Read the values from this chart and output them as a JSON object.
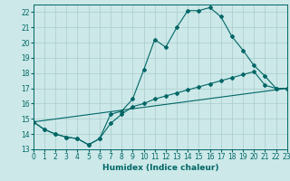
{
  "background_color": "#cce8e8",
  "grid_color": "#aacccc",
  "line_color": "#006666",
  "xlabel": "Humidex (Indice chaleur)",
  "xlim": [
    0,
    23
  ],
  "ylim": [
    13,
    22.5
  ],
  "yticks": [
    13,
    14,
    15,
    16,
    17,
    18,
    19,
    20,
    21,
    22
  ],
  "xticks": [
    0,
    1,
    2,
    3,
    4,
    5,
    6,
    7,
    8,
    9,
    10,
    11,
    12,
    13,
    14,
    15,
    16,
    17,
    18,
    19,
    20,
    21,
    22,
    23
  ],
  "series1_x": [
    0,
    1,
    2,
    3,
    4,
    5,
    6,
    7,
    8,
    9,
    10,
    11,
    12,
    13,
    14,
    15,
    16,
    17,
    18,
    19,
    20,
    21,
    22,
    23
  ],
  "series1_y": [
    14.8,
    14.3,
    14.0,
    13.8,
    13.7,
    13.3,
    13.7,
    15.3,
    15.5,
    16.3,
    18.2,
    20.2,
    19.7,
    21.0,
    22.1,
    22.1,
    22.3,
    21.7,
    20.4,
    19.5,
    18.5,
    17.8,
    17.0,
    17.0
  ],
  "series2_x": [
    0,
    1,
    2,
    3,
    4,
    5,
    6,
    7,
    8,
    9,
    10,
    11,
    12,
    13,
    14,
    15,
    16,
    17,
    18,
    19,
    20,
    21,
    22,
    23
  ],
  "series2_y": [
    14.8,
    14.3,
    14.0,
    13.8,
    13.7,
    13.3,
    13.7,
    14.7,
    15.3,
    15.8,
    16.0,
    16.3,
    16.5,
    16.7,
    16.9,
    17.1,
    17.3,
    17.5,
    17.7,
    17.9,
    18.1,
    17.2,
    17.0,
    17.0
  ],
  "series3_x": [
    0,
    23
  ],
  "series3_y": [
    14.8,
    17.0
  ],
  "marker_size": 2.0,
  "line_width": 0.8,
  "tick_fontsize": 5.5,
  "xlabel_fontsize": 6.5
}
